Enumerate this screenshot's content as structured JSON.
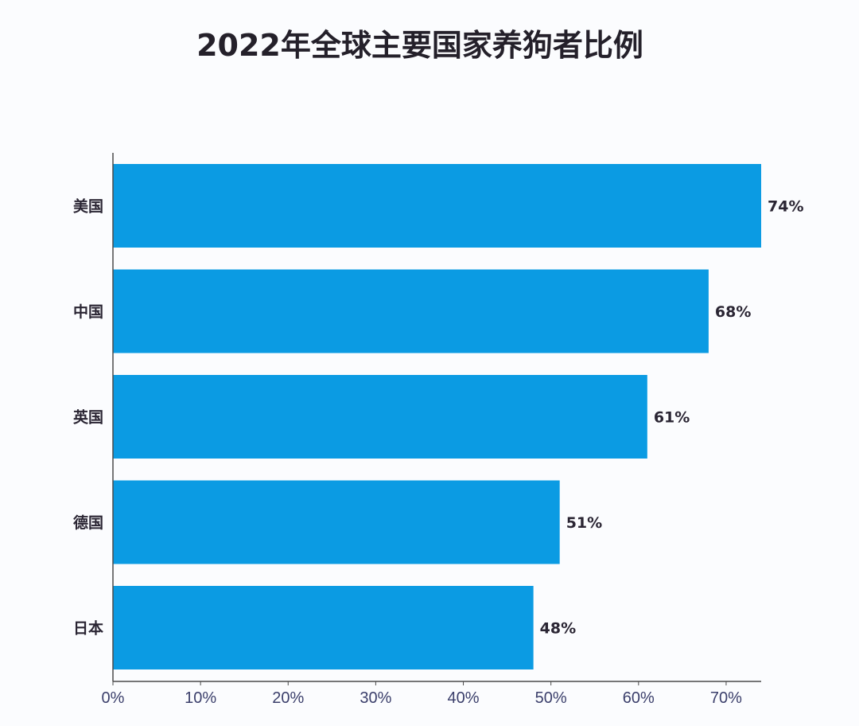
{
  "chart_data": {
    "type": "bar",
    "orientation": "horizontal",
    "title": "2022年全球主要国家养狗者比例",
    "categories": [
      "美国",
      "中国",
      "英国",
      "德国",
      "日本"
    ],
    "values": [
      74,
      68,
      61,
      51,
      48
    ],
    "value_labels": [
      "74%",
      "68%",
      "61%",
      "51%",
      "48%"
    ],
    "xlim": [
      0,
      74
    ],
    "x_ticks": [
      0,
      10,
      20,
      30,
      40,
      50,
      60,
      70
    ],
    "x_tick_labels": [
      "0%",
      "10%",
      "20%",
      "30%",
      "40%",
      "50%",
      "60%",
      "70%"
    ],
    "xlabel": "",
    "ylabel": "",
    "grid": false,
    "legend": "none",
    "bar_color": "#0b9be3"
  }
}
